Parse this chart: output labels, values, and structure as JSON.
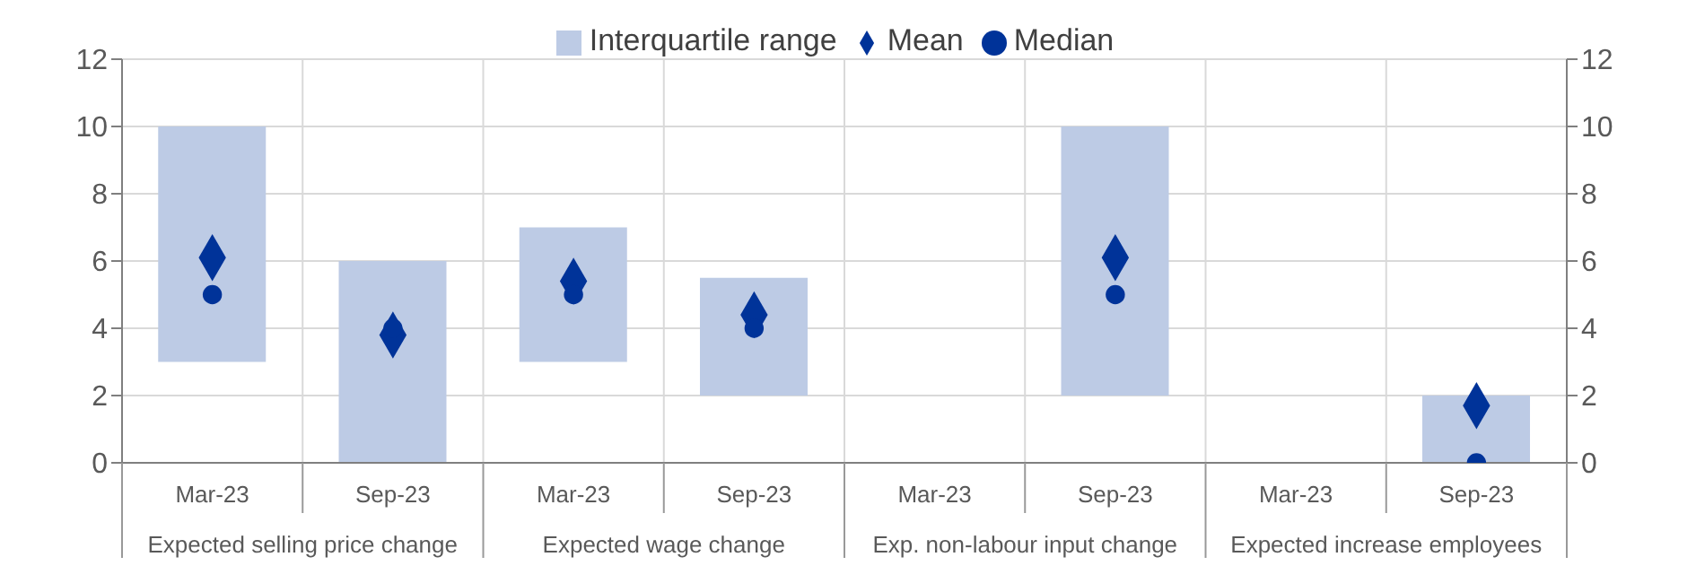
{
  "chart_data": {
    "type": "bar",
    "categories": [
      "Mar-23",
      "Sep-23",
      "Mar-23",
      "Sep-23",
      "Mar-23",
      "Sep-23",
      "Mar-23",
      "Sep-23"
    ],
    "series": [
      {
        "name": "Interquartile range",
        "color": "#bdcbe5",
        "base": [
          3,
          0,
          3,
          2,
          null,
          2,
          null,
          0
        ],
        "values": [
          7,
          6,
          4,
          3.5,
          null,
          8,
          null,
          2
        ]
      },
      {
        "name": "Mean",
        "type": "scatter",
        "marker": "diamond",
        "color": "#003399",
        "values": [
          6.1,
          3.8,
          5.4,
          4.4,
          null,
          6.1,
          null,
          1.7
        ]
      },
      {
        "name": "Median",
        "type": "scatter",
        "marker": "circle",
        "color": "#003399",
        "values": [
          5,
          4,
          5,
          4,
          null,
          5,
          null,
          0
        ]
      }
    ],
    "annotations": [
      "Expected selling price change",
      "Expected wage change",
      "Exp. non-labour input change",
      "Expected increase employees"
    ],
    "ylim": [
      0,
      12
    ],
    "yticks": [
      0,
      2,
      4,
      6,
      8,
      10,
      12
    ],
    "y2lim": [
      0,
      12
    ],
    "y2ticks": [
      0,
      2,
      4,
      6,
      8,
      10,
      12
    ],
    "grid": true,
    "legend": "top"
  }
}
